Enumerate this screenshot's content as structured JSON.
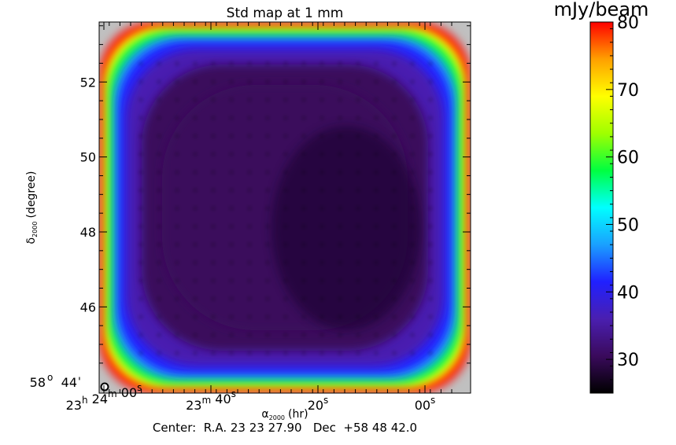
{
  "chart_data": {
    "type": "heatmap",
    "title": "Std map at 1 mm",
    "colorbar": {
      "unit_label": "mJy/beam",
      "range": [
        25,
        80
      ],
      "ticks": [
        30,
        40,
        50,
        60,
        70,
        80
      ],
      "tick_labels": [
        "30",
        "40",
        "50",
        "60",
        "70",
        "80"
      ]
    },
    "x_axis": {
      "label_greek": "α",
      "label_sub": "2000",
      "label_unit": "(hr)",
      "ticks": [
        {
          "sec_from_ra0": 0,
          "hms": [
            "23",
            "24",
            "00"
          ],
          "show_h": true,
          "show_m": true
        },
        {
          "sec_from_ra0": 20,
          "hms": [
            "",
            "23",
            "40"
          ],
          "show_h": false,
          "show_m": true
        },
        {
          "sec_from_ra0": 40,
          "hms": [
            "",
            "",
            "20"
          ],
          "show_h": false,
          "show_m": false
        },
        {
          "sec_from_ra0": 60,
          "hms": [
            "",
            "",
            "00"
          ],
          "show_h": false,
          "show_m": false
        }
      ],
      "h_sym": "h",
      "m_sym": "m",
      "s_sym": "s"
    },
    "y_axis": {
      "label_greek": "δ",
      "label_sub": "2000",
      "label_unit": "(degree)",
      "origin_label": "58",
      "origin_deg_sym": "o",
      "origin_min": "44",
      "origin_min_sym": "'",
      "ticks": [
        46,
        48,
        50,
        52
      ],
      "tick_labels": [
        "46",
        "48",
        "50",
        "52"
      ],
      "range_arcsec": [
        43.7,
        53.6
      ]
    },
    "center_text": "Center:  R.A. 23 23 27.90   Dec  +58 48 42.0",
    "colors": {
      "outside": "#c0c0c0",
      "colormap": [
        "#000000",
        "#3a0a5c",
        "#4a1fb0",
        "#2020ff",
        "#1aa0ff",
        "#00ffff",
        "#00ff40",
        "#a0ff00",
        "#ffff00",
        "#ffa000",
        "#ff0000"
      ]
    },
    "field": {
      "core_value": 28.5,
      "edge_value": 38,
      "corner_max": 80,
      "grid_pattern": true
    }
  }
}
